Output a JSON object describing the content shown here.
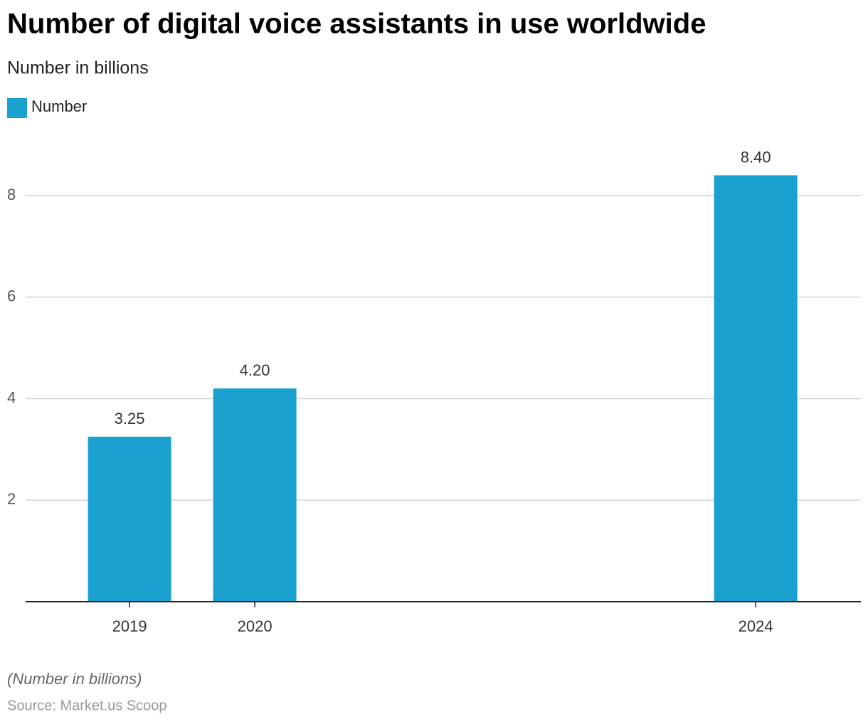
{
  "chart_data": {
    "type": "bar",
    "title": "Number of digital voice assistants in use worldwide",
    "subtitle": "Number in billions",
    "x": [
      2019,
      2020,
      2024
    ],
    "series": [
      {
        "name": "Number",
        "color": "#1ba1cf",
        "values": [
          3.25,
          4.2,
          8.4
        ],
        "value_labels": [
          "3.25",
          "4.20",
          "8.40"
        ]
      }
    ],
    "xlim": [
      2018.17,
      2024.84
    ],
    "xticks": [
      2019,
      2020,
      2024
    ],
    "ylim": [
      0,
      9
    ],
    "yticks": [
      2,
      4,
      6,
      8
    ],
    "grid": true,
    "legend": "top-left",
    "note": "(Number in billions)",
    "source": "Source: Market.us Scoop"
  }
}
